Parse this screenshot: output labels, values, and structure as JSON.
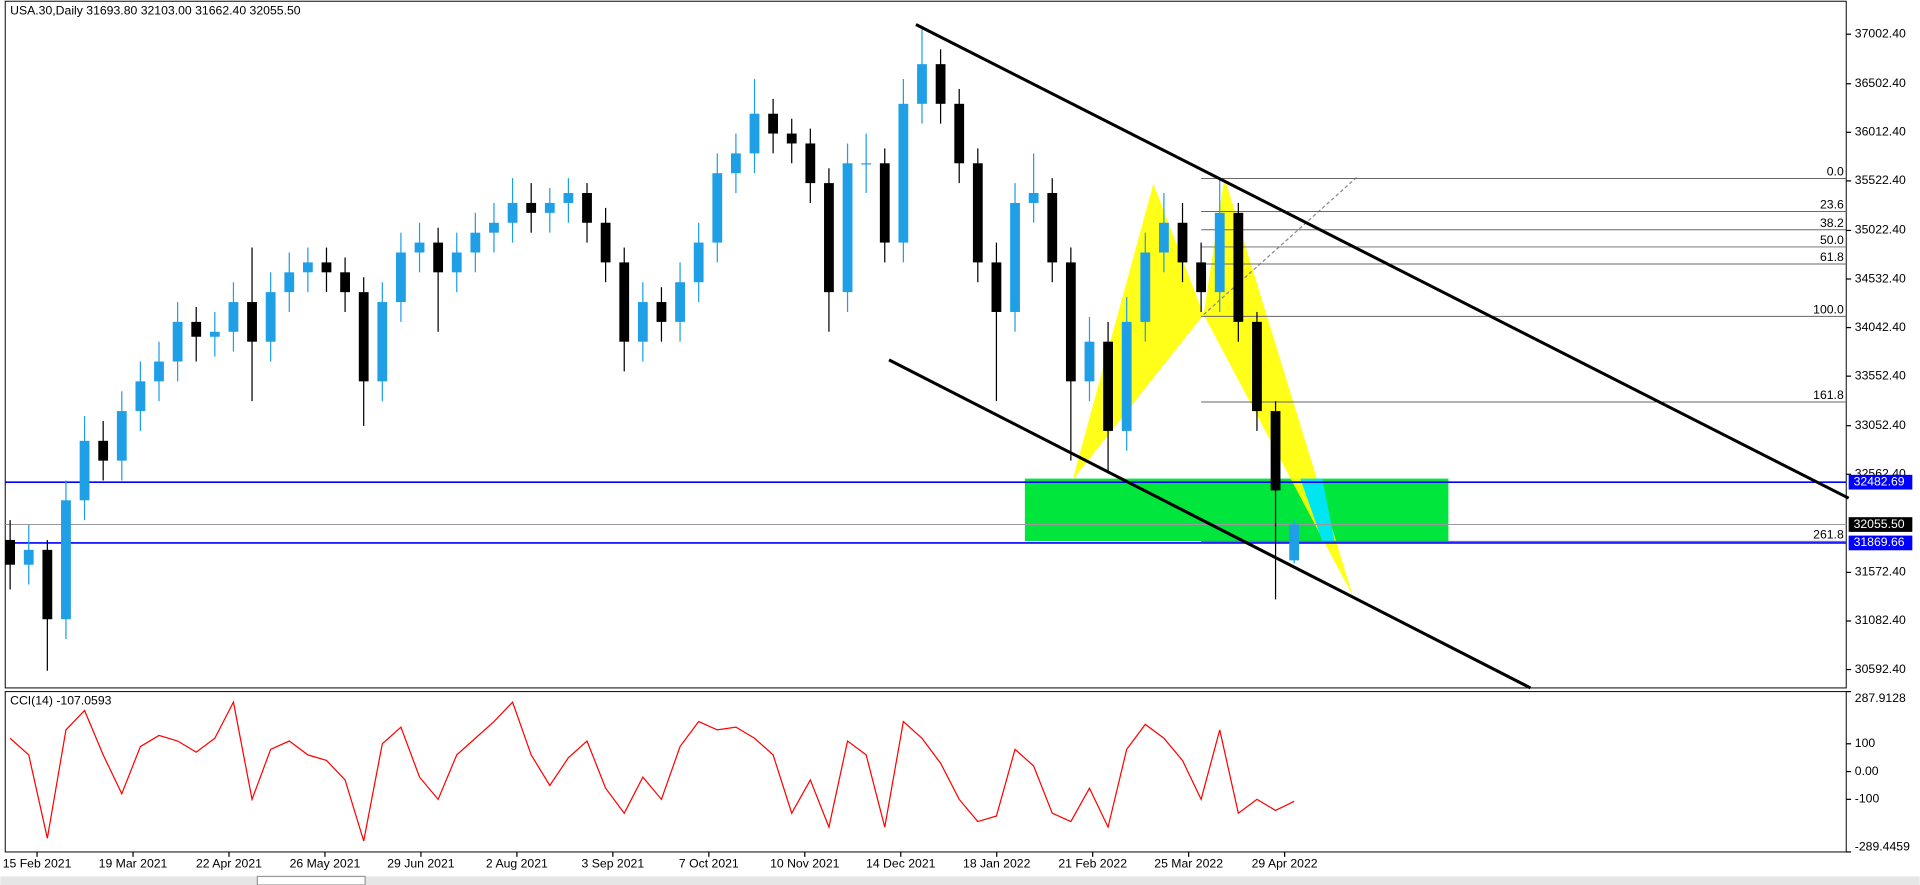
{
  "chart_data": [
    {
      "type": "candlestick",
      "title": "USA.30,Daily  31693.80 32103.00 31662.40 32055.50",
      "categories": [
        "15 Feb 2021",
        "19 Mar 2021",
        "22 Apr 2021",
        "26 May 2021",
        "29 Jun 2021",
        "2 Aug 2021",
        "3 Sep 2021",
        "7 Oct 2021",
        "10 Nov 2021",
        "14 Dec 2021",
        "18 Jan 2022",
        "21 Feb 2022",
        "25 Mar 2022",
        "29 Apr 2022"
      ],
      "open": [
        31900,
        31650,
        31800,
        31100,
        32300,
        32900,
        32700,
        33200,
        33500,
        33700,
        34100,
        33950,
        34000,
        34300,
        33900,
        34400,
        34600,
        34700,
        34600,
        34400,
        33500,
        34300,
        34800,
        34900,
        34600,
        34800,
        35000,
        35100,
        35300,
        35200,
        35300,
        35400,
        35100,
        34700,
        33900,
        34300,
        34100,
        34500,
        34900,
        35600,
        35800,
        36200,
        36000,
        35900,
        35500,
        34400,
        35700,
        35700,
        34900,
        36300,
        36700,
        36300,
        35700,
        34700,
        34200,
        35300,
        35400,
        34700,
        33500,
        33900,
        33000,
        34100,
        34800,
        35100,
        34700,
        34400,
        35200,
        34100,
        33200,
        31693.8
      ],
      "high": [
        32100,
        32050,
        31900,
        32500,
        33150,
        33100,
        33400,
        33700,
        33900,
        34300,
        34250,
        34200,
        34500,
        34850,
        34600,
        34800,
        34850,
        34850,
        34750,
        34550,
        34500,
        35000,
        35100,
        35050,
        35000,
        35200,
        35300,
        35550,
        35500,
        35450,
        35550,
        35500,
        35250,
        34850,
        34500,
        34450,
        34700,
        35100,
        35800,
        36000,
        36550,
        36350,
        36150,
        36050,
        35650,
        35900,
        36000,
        35850,
        36550,
        37050,
        36850,
        36450,
        35850,
        34900,
        35500,
        35800,
        35550,
        34850,
        34150,
        34100,
        34350,
        35000,
        35400,
        35300,
        34900,
        35550,
        35300,
        34200,
        33300,
        32103
      ],
      "low": [
        31400,
        31450,
        30580,
        30900,
        32100,
        32500,
        32500,
        33000,
        33300,
        33500,
        33700,
        33750,
        33800,
        33300,
        33700,
        34200,
        34400,
        34400,
        34200,
        33050,
        33300,
        34100,
        34600,
        34000,
        34400,
        34600,
        34800,
        34900,
        35000,
        35000,
        35100,
        34900,
        34500,
        33600,
        33700,
        33900,
        33900,
        34300,
        34700,
        35400,
        35600,
        35800,
        35700,
        35300,
        34000,
        34200,
        35400,
        34700,
        34700,
        36100,
        36100,
        35500,
        34500,
        33300,
        34000,
        35100,
        34500,
        32700,
        33300,
        32600,
        32800,
        33900,
        34600,
        34500,
        34200,
        34200,
        33900,
        33000,
        31300,
        31662.4
      ],
      "close": [
        31650,
        31800,
        31100,
        32300,
        32900,
        32700,
        33200,
        33500,
        33700,
        34100,
        33950,
        34000,
        34300,
        33900,
        34400,
        34600,
        34700,
        34600,
        34400,
        33500,
        34300,
        34800,
        34900,
        34600,
        34800,
        35000,
        35100,
        35300,
        35200,
        35300,
        35400,
        35100,
        34700,
        33900,
        34300,
        34100,
        34500,
        34900,
        35600,
        35800,
        36200,
        36000,
        35900,
        35500,
        34400,
        35700,
        35700,
        34900,
        36300,
        36700,
        36300,
        35700,
        34700,
        34200,
        35300,
        35400,
        34700,
        33500,
        33900,
        33000,
        34100,
        34800,
        35100,
        34700,
        34400,
        35200,
        34100,
        33200,
        32400,
        32055.5
      ],
      "up_color": "#1e9fe6",
      "down_color": "#000000",
      "ylim": [
        30407,
        37335
      ],
      "yticks": [
        {
          "value": 37002.4,
          "label": "37002.40"
        },
        {
          "value": 36502.4,
          "label": "36502.40"
        },
        {
          "value": 36012.4,
          "label": "36012.40"
        },
        {
          "value": 35522.4,
          "label": "35522.40"
        },
        {
          "value": 35022.4,
          "label": "35022.40"
        },
        {
          "value": 34532.4,
          "label": "34532.40"
        },
        {
          "value": 34042.4,
          "label": "34042.40"
        },
        {
          "value": 33552.4,
          "label": "33552.40"
        },
        {
          "value": 33052.4,
          "label": "33052.40"
        },
        {
          "value": 32562.4,
          "label": "32562.40"
        },
        {
          "value": 31572.4,
          "label": "31572.40"
        },
        {
          "value": 31082.4,
          "label": "31082.40"
        },
        {
          "value": 30592.4,
          "label": "30592.40"
        }
      ],
      "hlines": [
        {
          "value": 32482.69,
          "label": "32482.69",
          "color": "#0000ff"
        },
        {
          "value": 32055.5,
          "label": "32055.50",
          "color": "#000000"
        },
        {
          "value": 31869.66,
          "label": "31869.66",
          "color": "#0000ff"
        }
      ],
      "fibonacci": {
        "levels": [
          {
            "value": 0,
            "label": "0.0"
          },
          23.6,
          38.2,
          {
            "value": 50,
            "label": "50.0"
          },
          61.8,
          {
            "value": 100,
            "label": "100.0"
          },
          161.8,
          261.8
        ],
        "prices": [
          35547,
          35214,
          35029,
          34856,
          34684,
          34155,
          33292,
          31886
        ]
      }
    },
    {
      "type": "line",
      "title": "CCI(14) -107.0593",
      "values": [
        120,
        60,
        -240,
        150,
        220,
        60,
        -80,
        90,
        130,
        110,
        70,
        120,
        250,
        -100,
        80,
        110,
        60,
        40,
        -30,
        -250,
        100,
        160,
        -20,
        -100,
        60,
        120,
        180,
        250,
        60,
        -50,
        50,
        110,
        -60,
        -150,
        -20,
        -100,
        90,
        180,
        150,
        160,
        120,
        60,
        -150,
        -30,
        -200,
        110,
        60,
        -200,
        180,
        120,
        30,
        -100,
        -180,
        -160,
        80,
        20,
        -150,
        -180,
        -60,
        -200,
        80,
        170,
        120,
        40,
        -100,
        150,
        -150,
        -100,
        -140,
        -107.0593
      ],
      "color": "#ff0000",
      "ylim": [
        -289.4459,
        287.9128
      ],
      "yticks": [
        287.9128,
        100,
        {
          "value": 0,
          "label": "0.00"
        },
        -100,
        -289.4459
      ]
    }
  ]
}
